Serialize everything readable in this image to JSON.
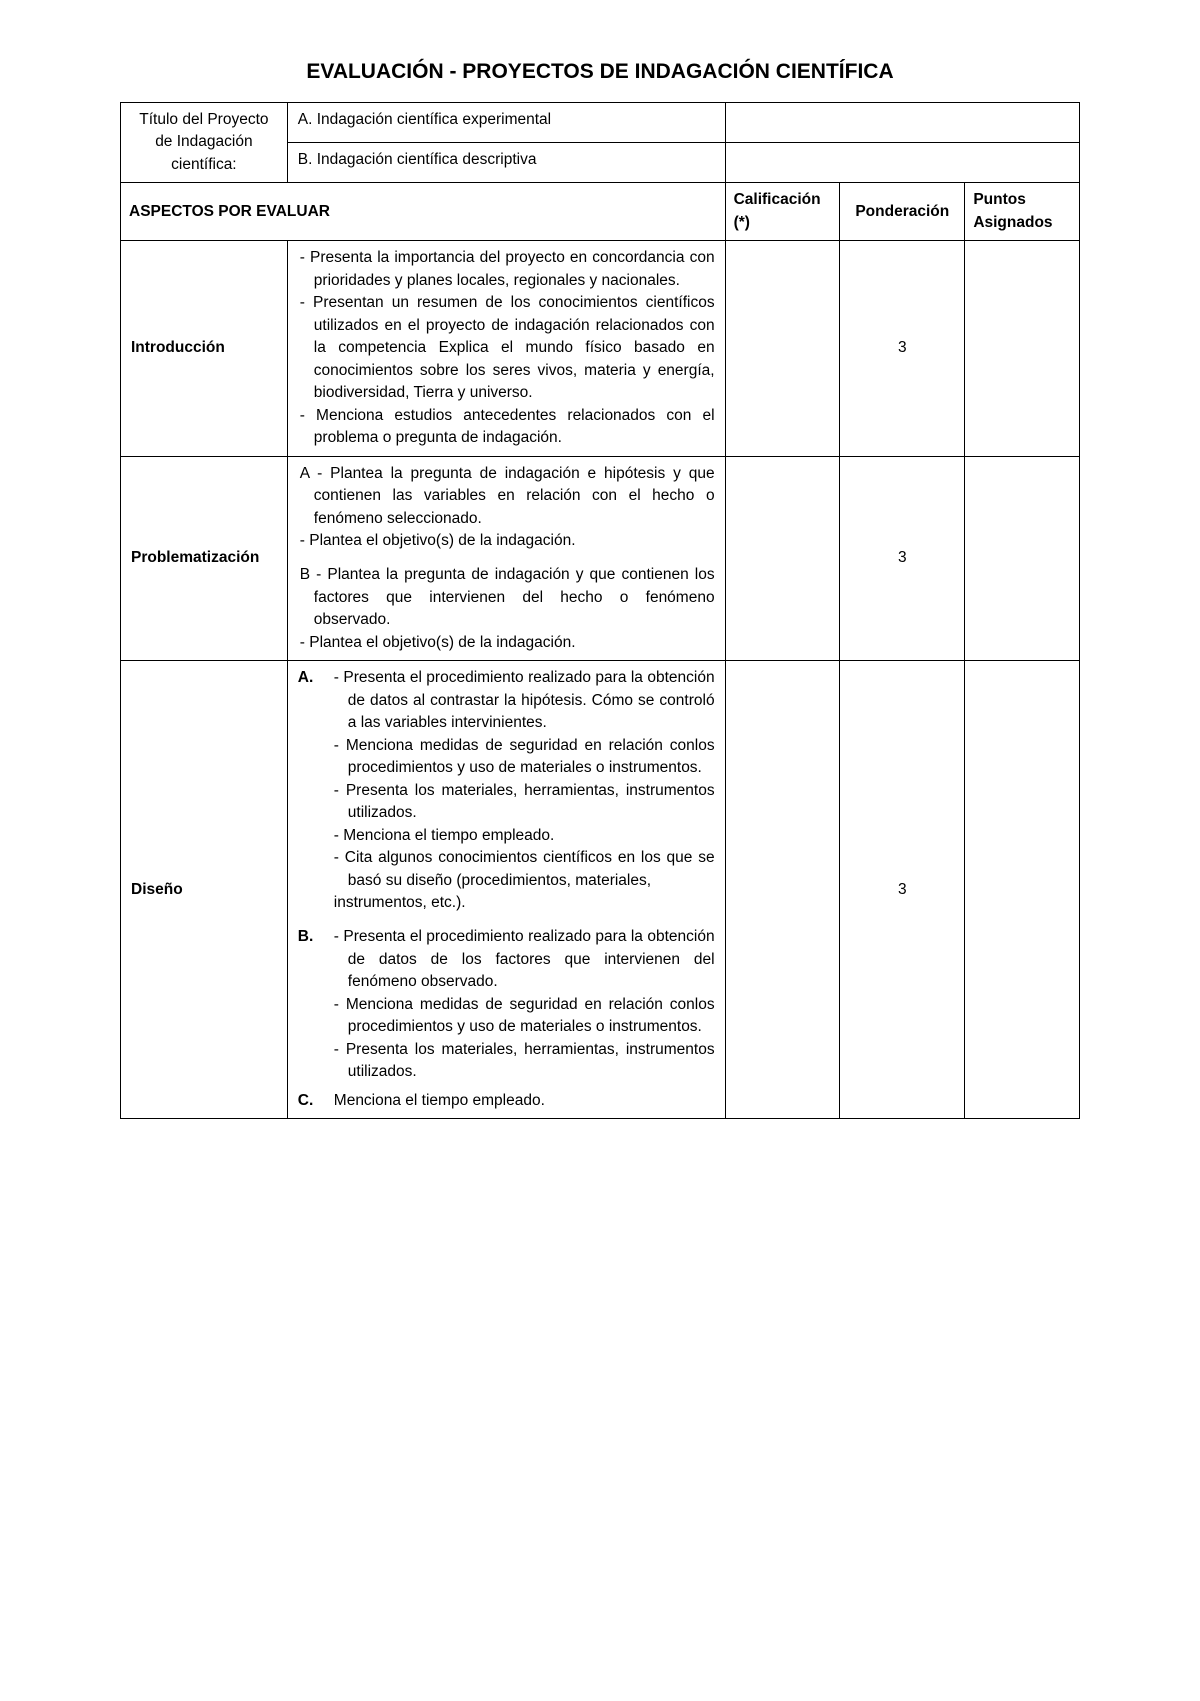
{
  "title": "EVALUACIÓN - PROYECTOS DE INDAGACIÓN CIENTÍFICA",
  "header": {
    "projectTitleLabel": "Título del Proyecto de Indagación científica:",
    "optionA": "A. Indagación científica experimental",
    "optionB": "B. Indagación científica descriptiva"
  },
  "columns": {
    "aspects": "ASPECTOS POR EVALUAR",
    "calificacion": "Calificación (*)",
    "ponderacion": "Ponderación",
    "puntos": "Puntos Asignados"
  },
  "rows": [
    {
      "name": "Introducción",
      "weight": "3",
      "descHtml": "- Presenta la importancia del proyecto en concordancia con prioridades y planes locales, regionales y nacionales.\n- Presentan un resumen de los conocimientos científicos utilizados en el proyecto de indagación relacionados con la competencia Explica el mundo físico basado en conocimientos sobre los seres vivos, materia y energía, biodiversidad, Tierra y universo.\n- Menciona estudios antecedentes relacionados con el problema o pregunta de indagación."
    },
    {
      "name": "Problematización",
      "weight": "3",
      "descA": "A - Plantea la pregunta de indagación e hipótesis y que contienen las variables en relación con el hecho o fenómeno seleccionado.\n- Plantea el objetivo(s) de la indagación.",
      "descB": "B - Plantea la pregunta de indagación y que contienen los factores que intervienen del hecho o fenómeno observado.\n- Plantea el objetivo(s) de la indagación."
    },
    {
      "name": "Diseño",
      "weight": "3",
      "tagA": "A.",
      "descA": "- Presenta el procedimiento realizado para la obtención de datos al contrastar la hipótesis. Cómo se controló a las variables intervinientes.\n- Menciona medidas de seguridad en relación conlos procedimientos y uso de materiales o instrumentos.\n- Presenta los materiales, herramientas, instrumentos utilizados.\n- Menciona el tiempo empleado.\n- Cita algunos conocimientos científicos en los que se basó su diseño (procedimientos, materiales,\ninstrumentos, etc.).",
      "tagB": "B.",
      "descB": "- Presenta el procedimiento realizado para la obtención de datos de los factores que intervienen del fenómeno observado.\n- Menciona medidas de seguridad en relación conlos procedimientos y uso de materiales o instrumentos.\n- Presenta los materiales, herramientas, instrumentos utilizados.",
      "tagC": "C.",
      "descC": "Menciona el tiempo empleado."
    }
  ]
}
